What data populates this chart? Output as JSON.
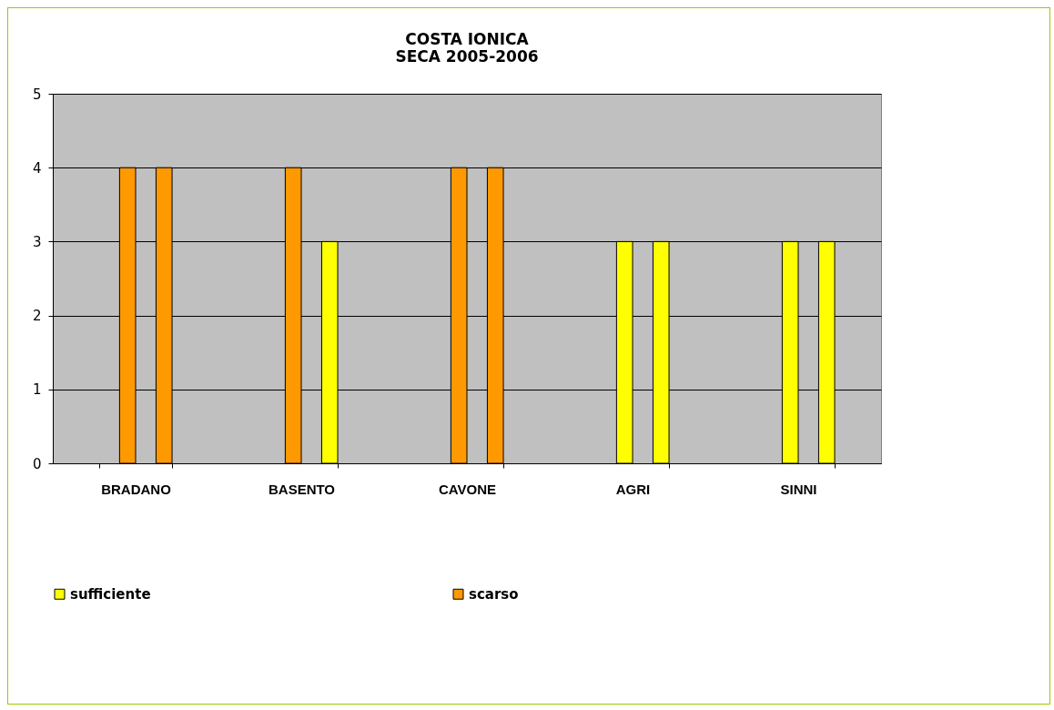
{
  "chart_data": {
    "type": "bar",
    "title": [
      "COSTA IONICA",
      "SECA 2005-2006"
    ],
    "categories": [
      "BRADANO",
      "BASENTO",
      "CAVONE",
      "AGRI",
      "SINNI"
    ],
    "series": [
      {
        "colors": [
          "#ff9900",
          "#ff9900",
          "#ff9900",
          "#ffff00",
          "#ffff00"
        ],
        "values": [
          4,
          4,
          4,
          3,
          3
        ]
      },
      {
        "colors": [
          "#ff9900",
          "#ffff00",
          "#ff9900",
          "#ffff00",
          "#ffff00"
        ],
        "values": [
          4,
          3,
          4,
          3,
          3
        ]
      },
      {
        "name": "sufficiente",
        "color": "#ffff00",
        "values": [
          null,
          null,
          null,
          null,
          null
        ]
      },
      {
        "name": "scarso",
        "color": "#ff9900",
        "values": [
          null,
          null,
          null,
          null,
          null
        ]
      }
    ],
    "ylim": [
      0,
      5
    ],
    "yticks": [
      0,
      1,
      2,
      3,
      4,
      5
    ],
    "grid": "y",
    "legend": "bottom"
  }
}
